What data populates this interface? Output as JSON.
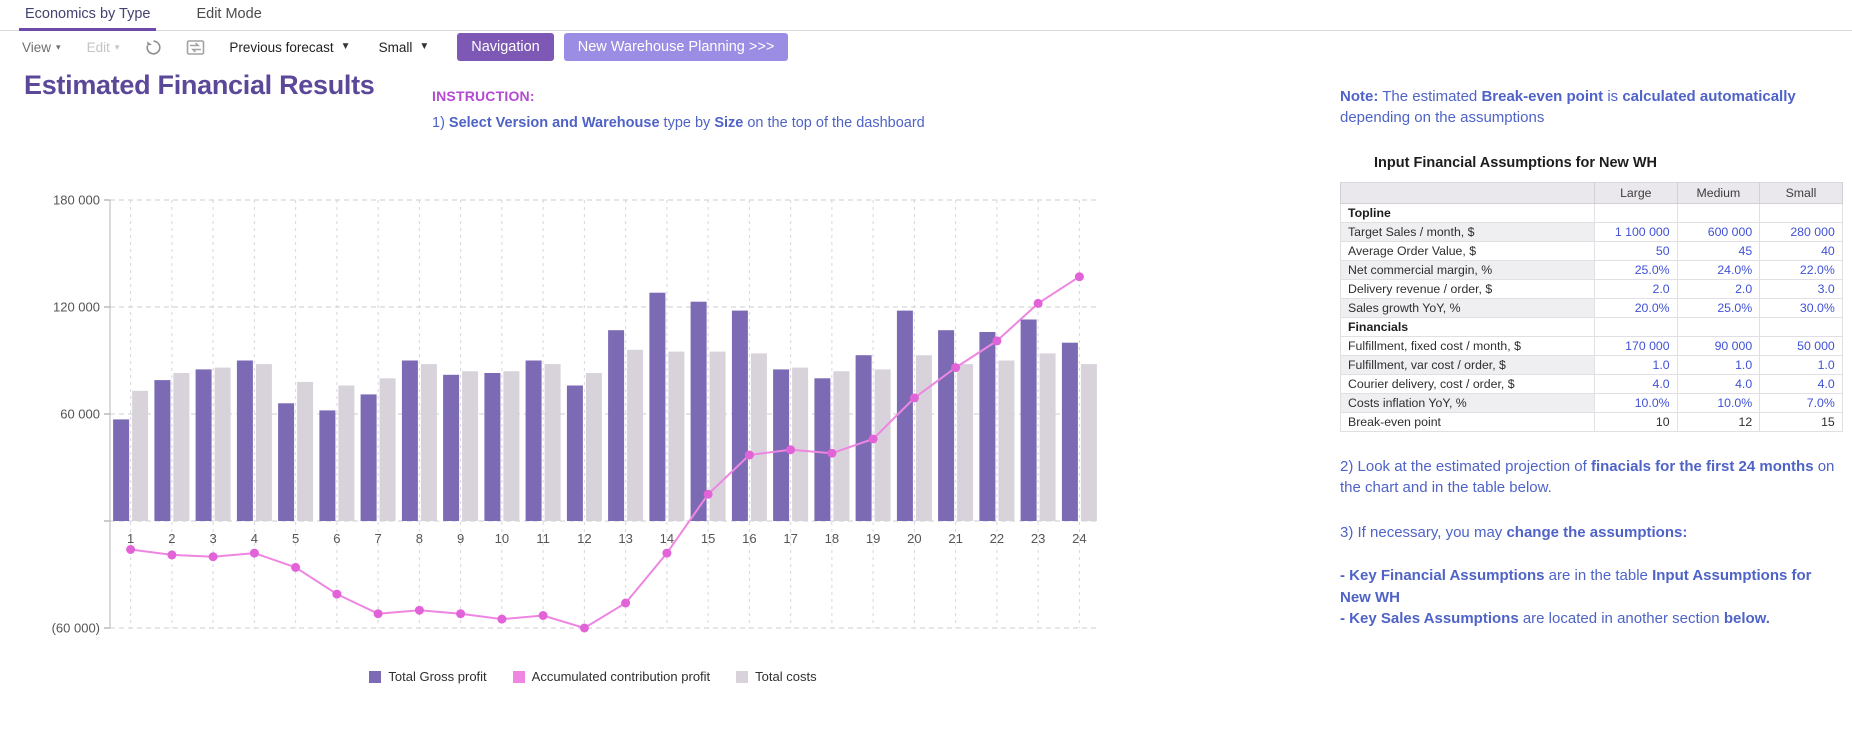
{
  "tabs": {
    "items": [
      {
        "label": "Economics by Type",
        "active": true
      },
      {
        "label": "Edit Mode",
        "active": false
      }
    ]
  },
  "toolbar": {
    "view_label": "View",
    "edit_label": "Edit",
    "refresh_icon": "refresh",
    "swap_icon": "swap-sheet",
    "forecast_select": "Previous forecast",
    "size_select": "Small",
    "navigation_button": "Navigation",
    "new_wh_button": "New Warehouse Planning >>>"
  },
  "header": {
    "title": "Estimated Financial Results"
  },
  "instruction": {
    "heading": "INSTRUCTION:",
    "step1": [
      {
        "t": "1) ",
        "b": 0
      },
      {
        "t": "Select Version and Warehouse",
        "b": 1
      },
      {
        "t": " type by ",
        "b": 0
      },
      {
        "t": "Size",
        "b": 1
      },
      {
        "t": " on the top of the dashboard",
        "b": 0
      }
    ]
  },
  "right_panel": {
    "note": [
      {
        "t": "Note:",
        "b": 1
      },
      {
        "t": " The estimated ",
        "b": 0
      },
      {
        "t": "Break-even point",
        "b": 1
      },
      {
        "t": " is ",
        "b": 0
      },
      {
        "t": "calculated automatically",
        "b": 1
      },
      {
        "t": " depending on the assumptions",
        "b": 0
      }
    ],
    "table_title": "Input Financial Assumptions for New WH",
    "step2": [
      {
        "t": "2) Look at the estimated projection of ",
        "b": 0
      },
      {
        "t": "finacials for the first 24 months",
        "b": 1
      },
      {
        "t": " on the chart and in the table below.",
        "b": 0
      }
    ],
    "step3": [
      {
        "t": "3) If necessary, you may ",
        "b": 0
      },
      {
        "t": "change the assumptions:",
        "b": 1
      }
    ],
    "bullet1": [
      {
        "t": "- Key Financial Assumptions",
        "b": 1
      },
      {
        "t": " are in the table ",
        "b": 0
      },
      {
        "t": "Input Assumptions for New WH",
        "b": 1
      }
    ],
    "bullet2": [
      {
        "t": "- Key Sales Assumptions",
        "b": 1
      },
      {
        "t": " are located in another section ",
        "b": 0
      },
      {
        "t": "below.",
        "b": 1
      }
    ]
  },
  "assumptions_table": {
    "columns": [
      "",
      "Large",
      "Medium",
      "Small"
    ],
    "rows": [
      {
        "label": "Topline",
        "section": true,
        "values": [
          "",
          "",
          ""
        ],
        "editable": false
      },
      {
        "label": "Target Sales / month, $",
        "section": false,
        "values": [
          "1 100 000",
          "600 000",
          "280 000"
        ],
        "editable": true
      },
      {
        "label": "Average Order Value, $",
        "section": false,
        "values": [
          "50",
          "45",
          "40"
        ],
        "editable": true
      },
      {
        "label": "Net commercial margin, %",
        "section": false,
        "values": [
          "25.0%",
          "24.0%",
          "22.0%"
        ],
        "editable": true
      },
      {
        "label": "Delivery revenue / order, $",
        "section": false,
        "values": [
          "2.0",
          "2.0",
          "3.0"
        ],
        "editable": true
      },
      {
        "label": "Sales growth YoY, %",
        "section": false,
        "values": [
          "20.0%",
          "25.0%",
          "30.0%"
        ],
        "editable": true
      },
      {
        "label": "Financials",
        "section": true,
        "values": [
          "",
          "",
          ""
        ],
        "editable": false
      },
      {
        "label": "Fulfillment, fixed cost / month, $",
        "section": false,
        "values": [
          "170 000",
          "90 000",
          "50 000"
        ],
        "editable": true
      },
      {
        "label": "Fulfillment, var cost / order, $",
        "section": false,
        "values": [
          "1.0",
          "1.0",
          "1.0"
        ],
        "editable": true
      },
      {
        "label": "Courier delivery, cost / order, $",
        "section": false,
        "values": [
          "4.0",
          "4.0",
          "4.0"
        ],
        "editable": true
      },
      {
        "label": "Costs inflation YoY, %",
        "section": false,
        "values": [
          "10.0%",
          "10.0%",
          "7.0%"
        ],
        "editable": true
      },
      {
        "label": "Break-even point",
        "section": false,
        "values": [
          "10",
          "12",
          "15"
        ],
        "editable": false
      }
    ]
  },
  "chart_data": {
    "type": "combo",
    "x": [
      1,
      2,
      3,
      4,
      5,
      6,
      7,
      8,
      9,
      10,
      11,
      12,
      13,
      14,
      15,
      16,
      17,
      18,
      19,
      20,
      21,
      22,
      23,
      24
    ],
    "xlabel": "",
    "ylabel": "",
    "ylim": [
      -60000,
      180000
    ],
    "grid": true,
    "legend_position": "bottom",
    "yticks": [
      {
        "value": 180000,
        "label": "180 000"
      },
      {
        "value": 120000,
        "label": "120 000"
      },
      {
        "value": 60000,
        "label": "60 000"
      },
      {
        "value": 0,
        "label": ""
      },
      {
        "value": -60000,
        "label": "(60 000)"
      }
    ],
    "series": [
      {
        "name": "Total Gross profit",
        "type": "bar",
        "color": "#7c6ab5",
        "values": [
          57000,
          79000,
          85000,
          90000,
          66000,
          62000,
          71000,
          90000,
          82000,
          83000,
          90000,
          76000,
          107000,
          128000,
          123000,
          118000,
          85000,
          80000,
          93000,
          118000,
          107000,
          106000,
          113000,
          100000
        ]
      },
      {
        "name": "Accumulated contribution profit",
        "type": "line",
        "color": "#ee86e2",
        "marker_color": "#e263d8",
        "values": [
          -16000,
          -19000,
          -20000,
          -18000,
          -26000,
          -41000,
          -52000,
          -50000,
          -52000,
          -55000,
          -53000,
          -60000,
          -46000,
          -18000,
          15000,
          37000,
          40000,
          38000,
          46000,
          69000,
          86000,
          101000,
          122000,
          137000
        ]
      },
      {
        "name": "Total costs",
        "type": "bar",
        "color": "#d8d3da",
        "values": [
          73000,
          83000,
          86000,
          88000,
          78000,
          76000,
          80000,
          88000,
          84000,
          84000,
          88000,
          83000,
          96000,
          95000,
          95000,
          94000,
          86000,
          84000,
          85000,
          93000,
          88000,
          90000,
          94000,
          88000
        ]
      }
    ]
  },
  "colors": {
    "accent_purple": "#7d58b4",
    "accent_periwinkle": "#9b8de4",
    "tab_underline": "#6d4aa8",
    "title_purple": "#5c4899",
    "instruction_magenta": "#b44ad2",
    "body_blue": "#4f63c7",
    "table_value_blue": "#3f51d6",
    "bar_gross_profit": "#7c6ab5",
    "bar_total_costs": "#d8d3da",
    "line_accumulated": "#ee86e2"
  }
}
